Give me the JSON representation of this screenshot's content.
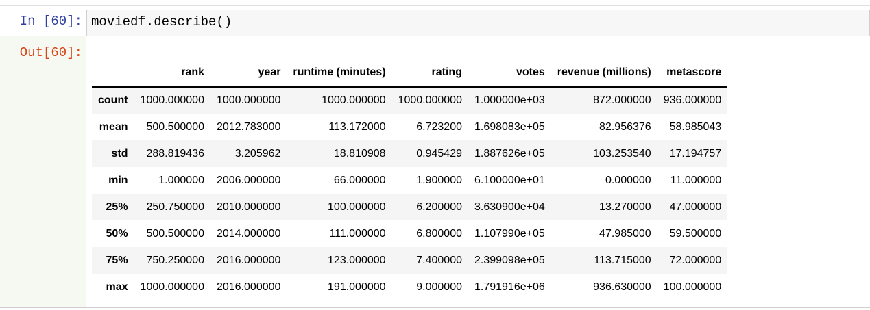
{
  "cell": {
    "in_prompt": "In [60]:",
    "code": "moviedf.describe()",
    "out_prompt": "Out[60]:"
  },
  "table": {
    "columns": [
      "rank",
      "year",
      "runtime (minutes)",
      "rating",
      "votes",
      "revenue (millions)",
      "metascore"
    ],
    "rows": [
      {
        "label": "count",
        "values": [
          "1000.000000",
          "1000.000000",
          "1000.000000",
          "1000.000000",
          "1.000000e+03",
          "872.000000",
          "936.000000"
        ]
      },
      {
        "label": "mean",
        "values": [
          "500.500000",
          "2012.783000",
          "113.172000",
          "6.723200",
          "1.698083e+05",
          "82.956376",
          "58.985043"
        ]
      },
      {
        "label": "std",
        "values": [
          "288.819436",
          "3.205962",
          "18.810908",
          "0.945429",
          "1.887626e+05",
          "103.253540",
          "17.194757"
        ]
      },
      {
        "label": "min",
        "values": [
          "1.000000",
          "2006.000000",
          "66.000000",
          "1.900000",
          "6.100000e+01",
          "0.000000",
          "11.000000"
        ]
      },
      {
        "label": "25%",
        "values": [
          "250.750000",
          "2010.000000",
          "100.000000",
          "6.200000",
          "3.630900e+04",
          "13.270000",
          "47.000000"
        ]
      },
      {
        "label": "50%",
        "values": [
          "500.500000",
          "2014.000000",
          "111.000000",
          "6.800000",
          "1.107990e+05",
          "47.985000",
          "59.500000"
        ]
      },
      {
        "label": "75%",
        "values": [
          "750.250000",
          "2016.000000",
          "123.000000",
          "7.400000",
          "2.399098e+05",
          "113.715000",
          "72.000000"
        ]
      },
      {
        "label": "max",
        "values": [
          "1000.000000",
          "2016.000000",
          "191.000000",
          "9.000000",
          "1.791916e+06",
          "936.630000",
          "100.000000"
        ]
      }
    ]
  }
}
